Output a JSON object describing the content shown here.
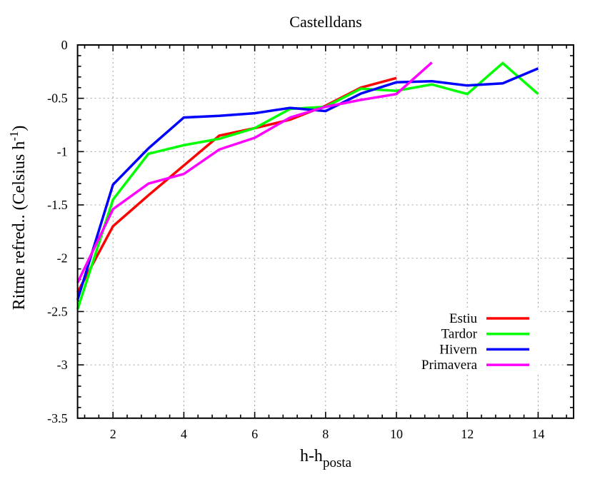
{
  "chart_data": {
    "type": "line",
    "title": "Castelldans",
    "xlabel": "h-h",
    "xlabel_subscript": "posta",
    "ylabel": "Ritme refred.. (Celsius h",
    "ylabel_superscript": "-1",
    "ylabel_close": ")",
    "xlim": [
      1,
      15
    ],
    "ylim": [
      -3.5,
      0
    ],
    "xticks": [
      2,
      4,
      6,
      8,
      10,
      12,
      14
    ],
    "xtick_labels": [
      "2",
      "4",
      "6",
      "8",
      "10",
      "12",
      "14"
    ],
    "yticks": [
      0,
      -0.5,
      -1,
      -1.5,
      -2,
      -2.5,
      -3,
      -3.5
    ],
    "ytick_labels": [
      "0",
      "-0.5",
      "-1",
      "-1.5",
      "-2",
      "-2.5",
      "-3",
      "-3.5"
    ],
    "x_minor_step": 0.4,
    "y_minor_step": 0.1,
    "grid": true,
    "legend_position": "bottom-right",
    "series": [
      {
        "name": "Estiu",
        "color": "#ff0000",
        "x": [
          1,
          2,
          3,
          4,
          5,
          6,
          7,
          8,
          9,
          10
        ],
        "values": [
          -2.32,
          -1.7,
          -1.41,
          -1.13,
          -0.85,
          -0.78,
          -0.7,
          -0.57,
          -0.4,
          -0.31
        ]
      },
      {
        "name": "Tardor",
        "color": "#00ff00",
        "x": [
          1,
          2,
          3,
          4,
          5,
          6,
          7,
          8,
          9,
          10,
          11,
          12,
          13,
          14
        ],
        "values": [
          -2.48,
          -1.45,
          -1.02,
          -0.94,
          -0.88,
          -0.78,
          -0.6,
          -0.58,
          -0.41,
          -0.43,
          -0.37,
          -0.46,
          -0.17,
          -0.46
        ]
      },
      {
        "name": "Hivern",
        "color": "#0000ff",
        "x": [
          1,
          2,
          3,
          4,
          5,
          6,
          7,
          8,
          9,
          10,
          11,
          12,
          13,
          14
        ],
        "values": [
          -2.39,
          -1.31,
          -0.97,
          -0.68,
          -0.665,
          -0.64,
          -0.59,
          -0.62,
          -0.455,
          -0.35,
          -0.34,
          -0.38,
          -0.36,
          -0.22
        ]
      },
      {
        "name": "Primavera",
        "color": "#ff00ff",
        "x": [
          1,
          2,
          3,
          4,
          5,
          6,
          7,
          8,
          9,
          10,
          11
        ],
        "values": [
          -2.23,
          -1.54,
          -1.3,
          -1.21,
          -0.98,
          -0.87,
          -0.68,
          -0.58,
          -0.515,
          -0.46,
          -0.165
        ]
      }
    ]
  }
}
